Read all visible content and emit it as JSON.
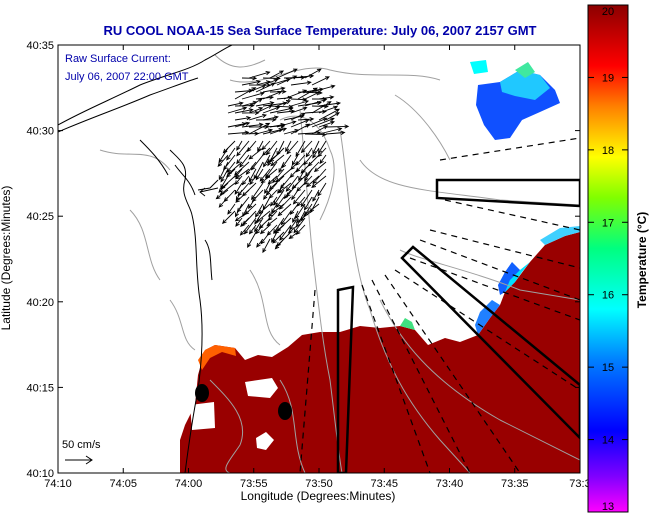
{
  "chart_data": {
    "type": "heatmap",
    "title": "RU COOL  NOAA-15  Sea Surface Temperature:  July 06, 2007 2157 GMT",
    "annotation_lines": [
      "Raw Surface Current:",
      "July 06, 2007 22:00 GMT"
    ],
    "scale_label": "50 cm/s",
    "xlabel": "Longitude (Degrees:Minutes)",
    "ylabel": "Latitude (Degrees:Minutes)",
    "x_ticks": [
      "74:10",
      "74:05",
      "74:00",
      "73:55",
      "73:50",
      "73:45",
      "73:40",
      "73:35",
      "73:3"
    ],
    "y_ticks": [
      "40:10",
      "40:15",
      "40:20",
      "40:25",
      "40:30",
      "40:35"
    ],
    "colorbar": {
      "label": "Temperature (°C)",
      "ticks": [
        "13",
        "14",
        "15",
        "16",
        "17",
        "18",
        "19",
        "20"
      ],
      "range": [
        13,
        20
      ],
      "colors": [
        "#ff00ff",
        "#0000ff",
        "#00ffff",
        "#00ff80",
        "#ffff00",
        "#ff8000",
        "#ff0000",
        "#8b0000"
      ]
    },
    "sst_summary": {
      "nearshore_and_south": 20,
      "northeast_patch_min": 14,
      "east_edge_min": 14
    },
    "grid": false
  },
  "colors": {
    "title": "#0000aa",
    "sst_max": "#990000",
    "land": "#ffffff",
    "coastline": "#000000",
    "bathymetry": "#a0a0a0"
  }
}
